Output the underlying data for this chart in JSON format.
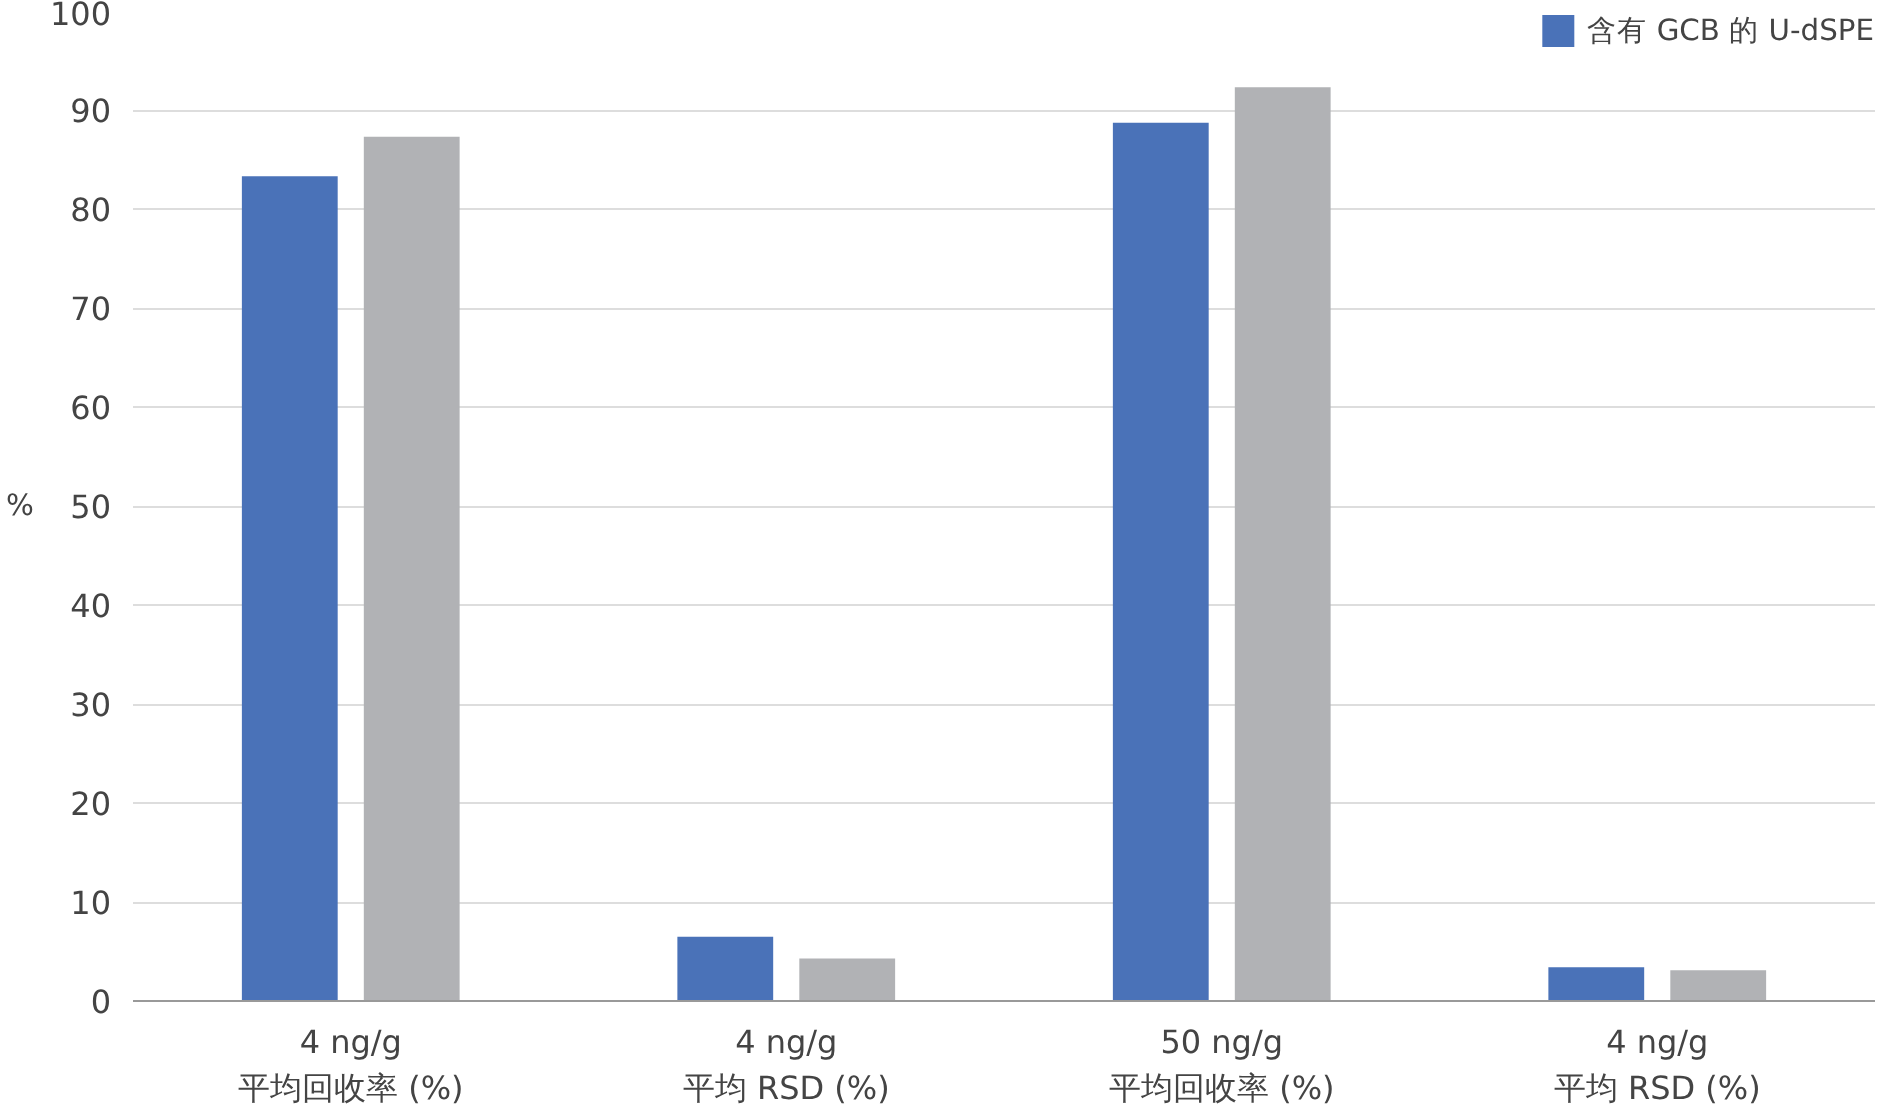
{
  "chart_data": {
    "type": "bar",
    "ylabel": "%",
    "categories": [
      "4 ng/g\n平均回收率 (%)",
      "4 ng/g\n平均 RSD (%)",
      "50 ng/g\n平均回收率 (%)",
      "4 ng/g\n平均 RSD (%)"
    ],
    "series": [
      {
        "name": "含有 GCB 的 U-dSPE",
        "color": "#4a72b8",
        "values": [
          83.3,
          6.5,
          88.7,
          3.4
        ]
      },
      {
        "color": "#b1b2b5",
        "values": [
          87.3,
          4.3,
          92.3,
          3.1
        ]
      }
    ],
    "ylim": [
      0,
      100
    ],
    "yticks": [
      0,
      10,
      20,
      30,
      40,
      50,
      60,
      70,
      80,
      90,
      100
    ],
    "grid": "y",
    "legend": "top right"
  }
}
